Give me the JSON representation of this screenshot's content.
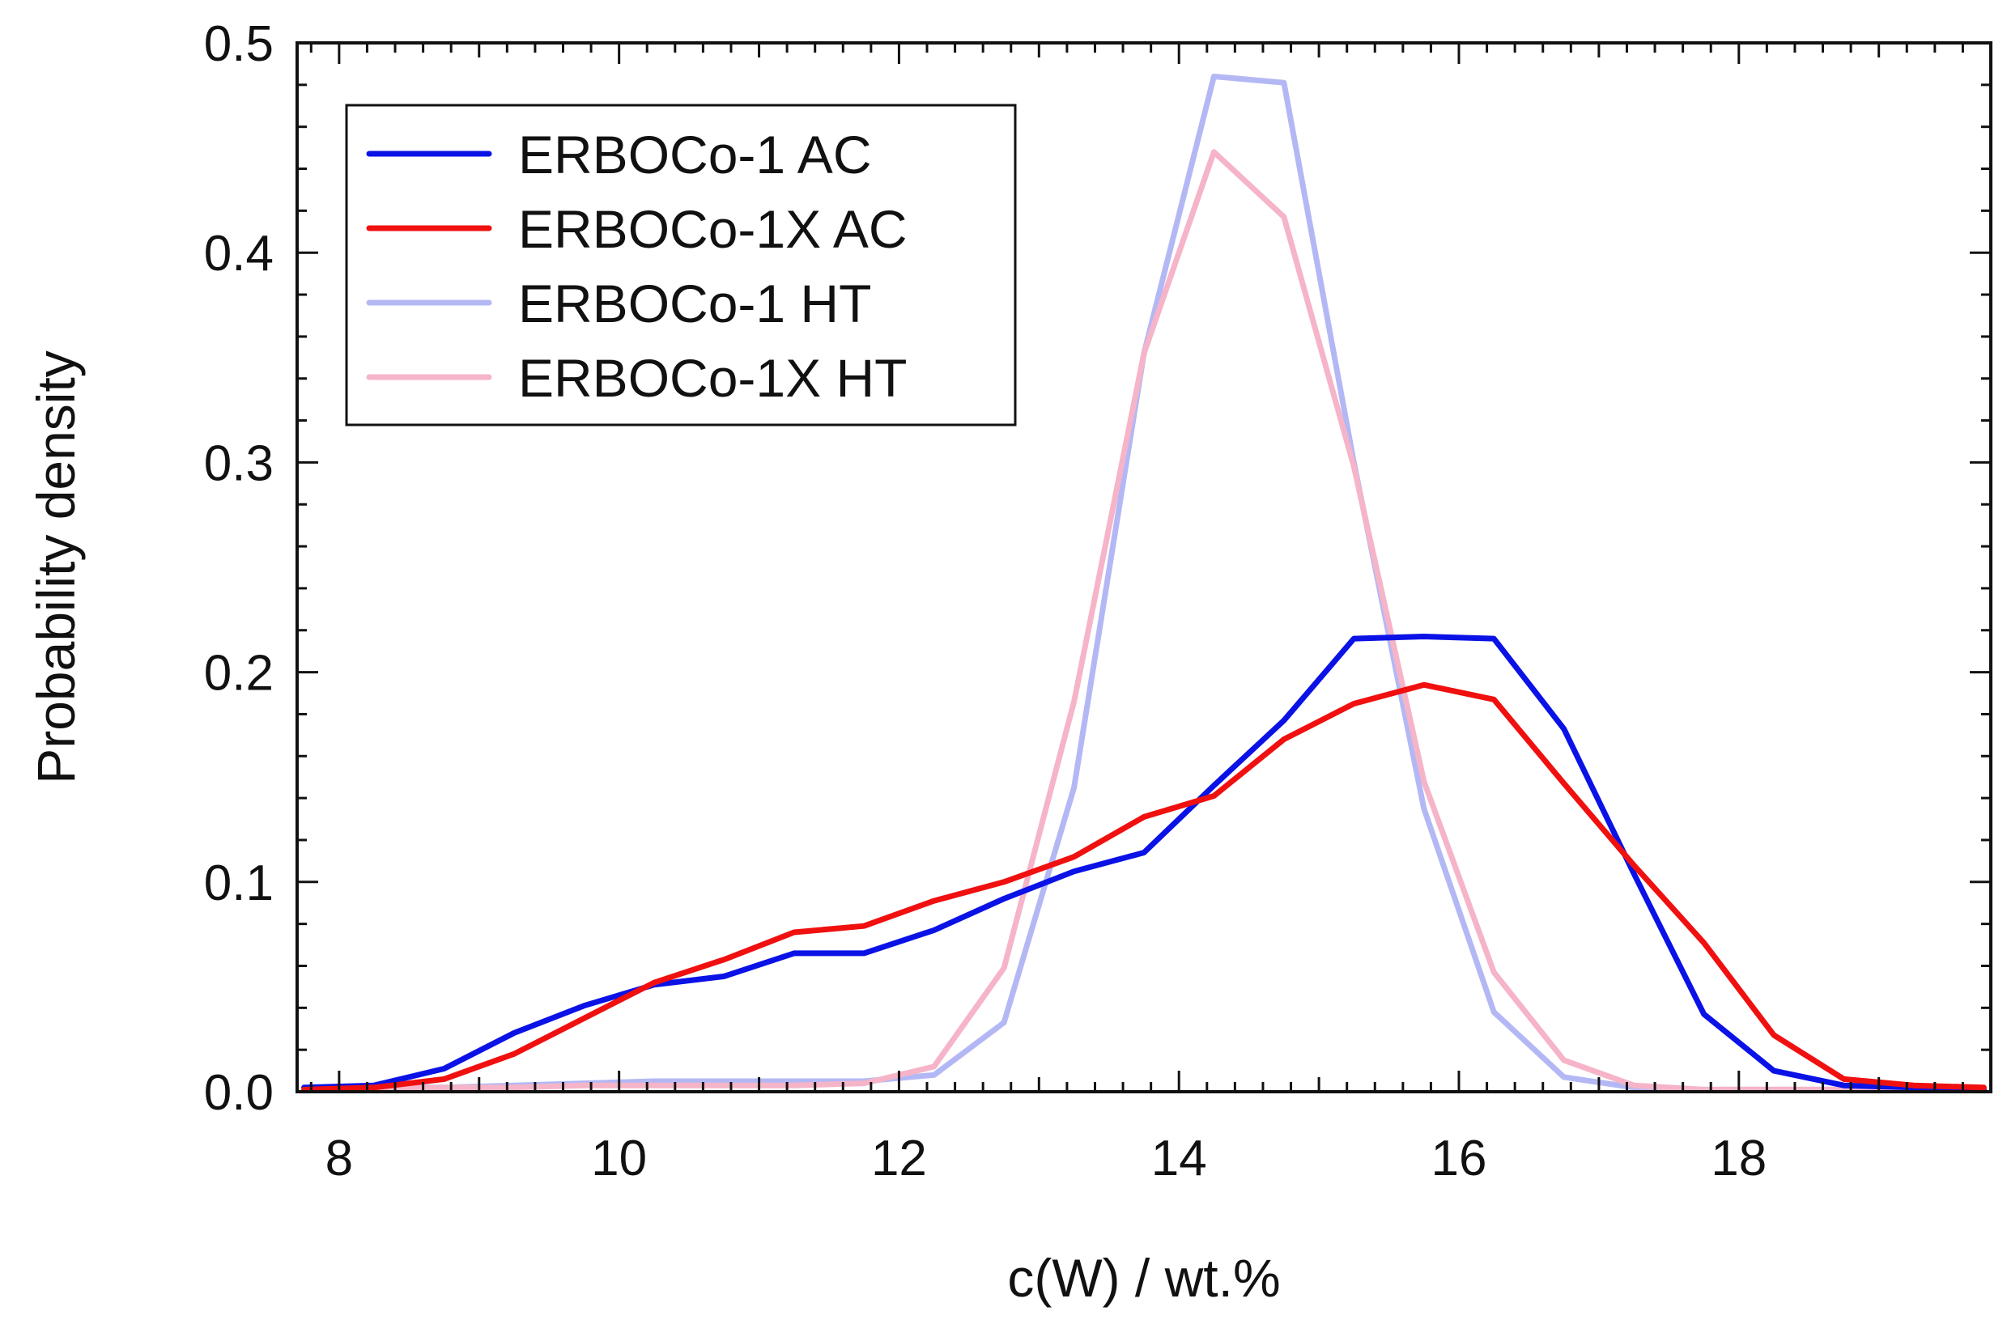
{
  "chart_data": {
    "type": "line",
    "title": "",
    "xlabel": "c(W) / wt.%",
    "ylabel": "Probability density",
    "xlim": [
      7.7,
      19.8
    ],
    "ylim": [
      0.0,
      0.5
    ],
    "xticks": [
      8,
      10,
      12,
      14,
      16,
      18
    ],
    "yticks": [
      0.0,
      0.1,
      0.2,
      0.3,
      0.4,
      0.5
    ],
    "xtick_labels": [
      "8",
      "10",
      "12",
      "14",
      "16",
      "18"
    ],
    "ytick_labels": [
      "0.0",
      "0.1",
      "0.2",
      "0.3",
      "0.4",
      "0.5"
    ],
    "grid": false,
    "legend_position": "top-left",
    "series": [
      {
        "name": "ERBOCo-1 AC",
        "color": "#0a12e6",
        "x": [
          7.75,
          8.25,
          8.75,
          9.25,
          9.75,
          10.25,
          10.75,
          11.25,
          11.75,
          12.25,
          12.75,
          13.25,
          13.75,
          14.25,
          14.75,
          15.25,
          15.75,
          16.25,
          16.75,
          17.25,
          17.75,
          18.25,
          18.75,
          19.25,
          19.75
        ],
        "y": [
          0.002,
          0.003,
          0.011,
          0.028,
          0.041,
          0.051,
          0.055,
          0.066,
          0.066,
          0.077,
          0.092,
          0.105,
          0.114,
          0.146,
          0.177,
          0.216,
          0.217,
          0.216,
          0.173,
          0.104,
          0.037,
          0.01,
          0.003,
          0.002,
          0.001
        ]
      },
      {
        "name": "ERBOCo-1X AC",
        "color": "#f01010",
        "x": [
          7.75,
          8.25,
          8.75,
          9.25,
          9.75,
          10.25,
          10.75,
          11.25,
          11.75,
          12.25,
          12.75,
          13.25,
          13.75,
          14.25,
          14.75,
          15.25,
          15.75,
          16.25,
          16.75,
          17.25,
          17.75,
          18.25,
          18.75,
          19.25,
          19.75
        ],
        "y": [
          0.001,
          0.002,
          0.006,
          0.018,
          0.035,
          0.052,
          0.063,
          0.076,
          0.079,
          0.091,
          0.1,
          0.112,
          0.131,
          0.141,
          0.168,
          0.185,
          0.194,
          0.187,
          0.147,
          0.108,
          0.071,
          0.027,
          0.006,
          0.003,
          0.002
        ]
      },
      {
        "name": "ERBOCo-1 HT",
        "color": "#b3b8f5",
        "x": [
          7.75,
          8.25,
          8.75,
          9.25,
          9.75,
          10.25,
          10.75,
          11.25,
          11.75,
          12.25,
          12.75,
          13.25,
          13.75,
          14.25,
          14.75,
          15.25,
          15.75,
          16.25,
          16.75,
          17.25,
          17.75,
          18.25,
          18.75,
          19.25,
          19.75
        ],
        "y": [
          0.001,
          0.002,
          0.002,
          0.003,
          0.004,
          0.005,
          0.005,
          0.005,
          0.005,
          0.008,
          0.033,
          0.145,
          0.352,
          0.484,
          0.481,
          0.3,
          0.135,
          0.038,
          0.007,
          0.002,
          0.001,
          0.001,
          0.001,
          0.001,
          0.001
        ]
      },
      {
        "name": "ERBOCo-1X HT",
        "color": "#f6b4c8",
        "x": [
          7.75,
          8.25,
          8.75,
          9.25,
          9.75,
          10.25,
          10.75,
          11.25,
          11.75,
          12.25,
          12.75,
          13.25,
          13.75,
          14.25,
          14.75,
          15.25,
          15.75,
          16.25,
          16.75,
          17.25,
          17.75,
          18.25,
          18.75,
          19.25,
          19.75
        ],
        "y": [
          0.001,
          0.001,
          0.002,
          0.002,
          0.003,
          0.003,
          0.003,
          0.003,
          0.004,
          0.012,
          0.059,
          0.186,
          0.352,
          0.448,
          0.417,
          0.298,
          0.148,
          0.057,
          0.015,
          0.003,
          0.001,
          0.001,
          0.001,
          0.001,
          0.001
        ]
      }
    ]
  }
}
